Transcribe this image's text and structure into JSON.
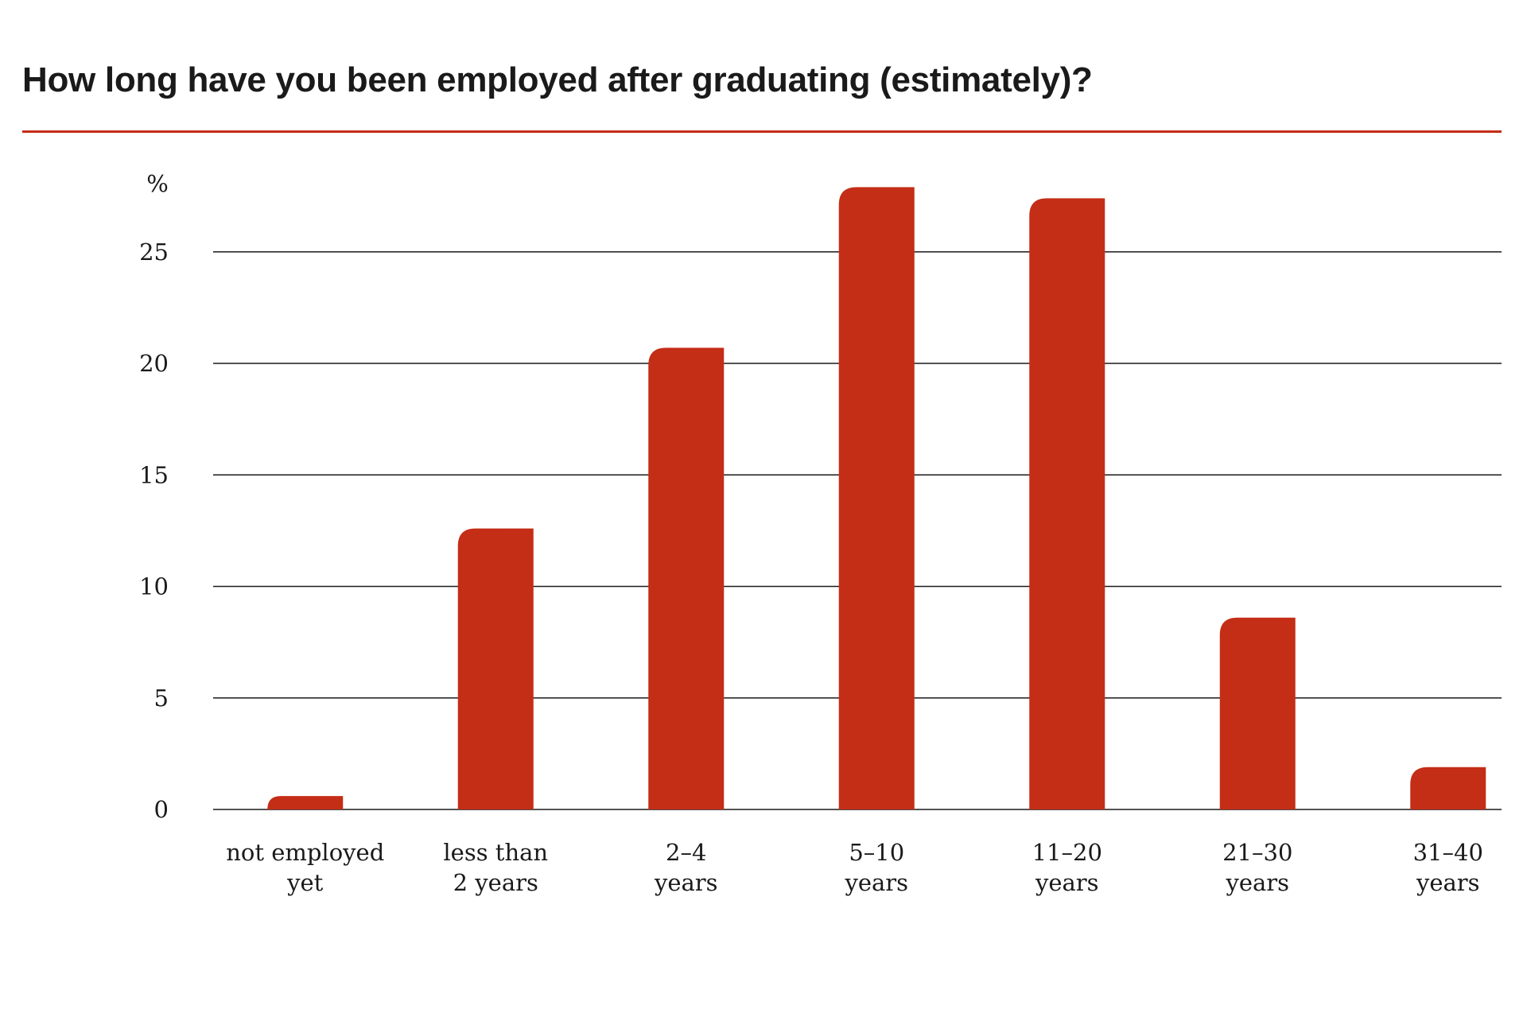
{
  "chart_data": {
    "type": "bar",
    "title": "How long have you been employed after graduating (estimately)?",
    "ylabel": "%",
    "xlabel": "",
    "categories": [
      [
        "not employed",
        "yet"
      ],
      [
        "less than",
        "2 years"
      ],
      [
        "2–4",
        "years"
      ],
      [
        "5–10",
        "years"
      ],
      [
        "11–20",
        "years"
      ],
      [
        "21–30",
        "years"
      ],
      [
        "31–40",
        "years"
      ]
    ],
    "values": [
      0.6,
      12.6,
      20.7,
      27.9,
      27.4,
      8.6,
      1.9
    ],
    "ylim": [
      0,
      28
    ],
    "yticks": [
      0,
      5,
      10,
      15,
      20,
      25
    ],
    "grid": true,
    "colors": {
      "bar": "#c42d16",
      "rule": "#c42d16",
      "grid": "#1a1a1a"
    }
  }
}
